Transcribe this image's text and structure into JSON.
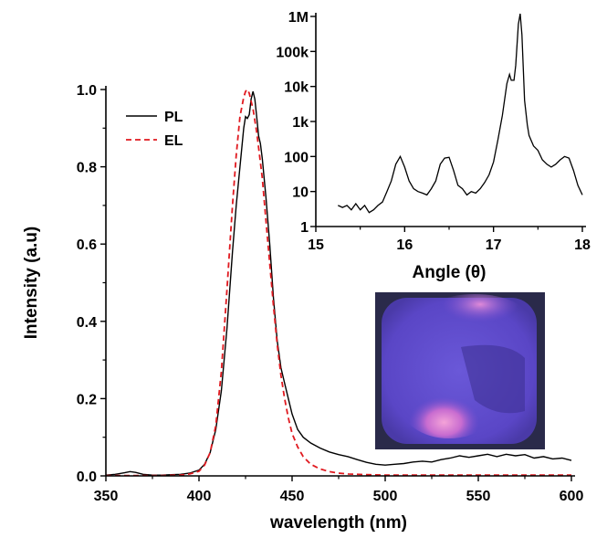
{
  "chart_data": [
    {
      "type": "line",
      "xlabel": "wavelength (nm)",
      "ylabel": "Intensity (a.u)",
      "xlim": [
        350,
        600
      ],
      "ylim": [
        0,
        1.0
      ],
      "xticks": [
        350,
        400,
        450,
        500,
        550,
        600
      ],
      "yticks": [
        0.0,
        0.2,
        0.4,
        0.6,
        0.8,
        1.0
      ],
      "ytick_labels": [
        "0.0",
        "0.2",
        "0.4",
        "0.6",
        "0.8",
        "1.0"
      ],
      "legend_placement": "top-left",
      "series": [
        {
          "name": "PL",
          "color": "#000000",
          "style": "solid",
          "x": [
            350,
            355,
            360,
            363,
            366,
            370,
            375,
            380,
            385,
            390,
            395,
            400,
            403,
            406,
            409,
            412,
            415,
            418,
            420,
            422,
            424,
            425,
            426,
            427,
            428,
            429,
            430,
            431,
            432,
            433,
            434,
            436,
            438,
            440,
            442,
            444,
            446,
            448,
            450,
            453,
            456,
            460,
            465,
            470,
            475,
            480,
            485,
            490,
            495,
            500,
            505,
            510,
            515,
            520,
            525,
            530,
            535,
            540,
            545,
            550,
            555,
            560,
            565,
            570,
            575,
            580,
            585,
            590,
            595,
            600
          ],
          "y": [
            0.002,
            0.004,
            0.008,
            0.011,
            0.009,
            0.004,
            0.002,
            0.002,
            0.003,
            0.004,
            0.007,
            0.015,
            0.03,
            0.06,
            0.12,
            0.22,
            0.38,
            0.58,
            0.7,
            0.8,
            0.9,
            0.93,
            0.925,
            0.935,
            0.975,
            0.995,
            0.975,
            0.93,
            0.88,
            0.86,
            0.82,
            0.72,
            0.6,
            0.46,
            0.35,
            0.28,
            0.24,
            0.2,
            0.16,
            0.12,
            0.1,
            0.085,
            0.072,
            0.062,
            0.055,
            0.05,
            0.042,
            0.035,
            0.03,
            0.028,
            0.03,
            0.032,
            0.036,
            0.038,
            0.036,
            0.042,
            0.046,
            0.052,
            0.048,
            0.052,
            0.056,
            0.05,
            0.056,
            0.052,
            0.055,
            0.046,
            0.05,
            0.044,
            0.046,
            0.04
          ]
        },
        {
          "name": "EL",
          "color": "#e0191f",
          "style": "dashed",
          "x": [
            350,
            360,
            370,
            380,
            390,
            395,
            400,
            403,
            406,
            409,
            412,
            415,
            418,
            420,
            422,
            424,
            425,
            426,
            427,
            428,
            429,
            430,
            431,
            432,
            434,
            436,
            438,
            440,
            442,
            444,
            446,
            448,
            450,
            453,
            456,
            460,
            465,
            470,
            475,
            480,
            490,
            500,
            520,
            540,
            560,
            580,
            600
          ],
          "y": [
            0.001,
            0.001,
            0.001,
            0.001,
            0.002,
            0.005,
            0.012,
            0.028,
            0.06,
            0.13,
            0.27,
            0.48,
            0.7,
            0.83,
            0.93,
            0.98,
            0.995,
            1.0,
            0.99,
            0.97,
            0.95,
            0.92,
            0.89,
            0.85,
            0.77,
            0.66,
            0.55,
            0.44,
            0.34,
            0.26,
            0.2,
            0.15,
            0.11,
            0.075,
            0.05,
            0.03,
            0.018,
            0.011,
            0.007,
            0.005,
            0.003,
            0.002,
            0.002,
            0.002,
            0.002,
            0.002,
            0.002
          ]
        }
      ]
    },
    {
      "type": "line",
      "xlabel": "Angle (θ)",
      "ylabel": "",
      "xlim": [
        15,
        18
      ],
      "yscale": "log",
      "ylim": [
        1,
        1000000
      ],
      "xticks": [
        15,
        16,
        17,
        18
      ],
      "yticks": [
        1,
        10,
        100,
        1000,
        10000,
        100000,
        1000000
      ],
      "ytick_labels": [
        "1",
        "10",
        "100",
        "1k",
        "10k",
        "100k",
        "1M"
      ],
      "series": [
        {
          "color": "#000000",
          "style": "solid",
          "x": [
            15.25,
            15.3,
            15.35,
            15.4,
            15.45,
            15.5,
            15.55,
            15.6,
            15.65,
            15.7,
            15.75,
            15.8,
            15.85,
            15.9,
            15.95,
            16.0,
            16.05,
            16.1,
            16.15,
            16.2,
            16.25,
            16.3,
            16.35,
            16.4,
            16.45,
            16.5,
            16.55,
            16.6,
            16.65,
            16.7,
            16.75,
            16.8,
            16.85,
            16.9,
            16.95,
            17.0,
            17.05,
            17.1,
            17.15,
            17.18,
            17.2,
            17.23,
            17.25,
            17.28,
            17.3,
            17.32,
            17.35,
            17.38,
            17.4,
            17.45,
            17.5,
            17.55,
            17.6,
            17.65,
            17.7,
            17.75,
            17.8,
            17.85,
            17.9,
            17.95,
            18.0
          ],
          "y": [
            4,
            3.5,
            4,
            3,
            4.5,
            3,
            4,
            2.5,
            3,
            4,
            5,
            10,
            20,
            60,
            100,
            50,
            20,
            12,
            10,
            9,
            8,
            12,
            20,
            60,
            90,
            95,
            40,
            15,
            12,
            8,
            10,
            9,
            12,
            18,
            30,
            70,
            300,
            1500,
            12000,
            22000,
            15000,
            15000,
            40000,
            600000,
            1200000,
            300000,
            4000,
            800,
            400,
            200,
            150,
            80,
            60,
            50,
            60,
            80,
            100,
            90,
            40,
            15,
            8
          ]
        }
      ]
    }
  ]
}
